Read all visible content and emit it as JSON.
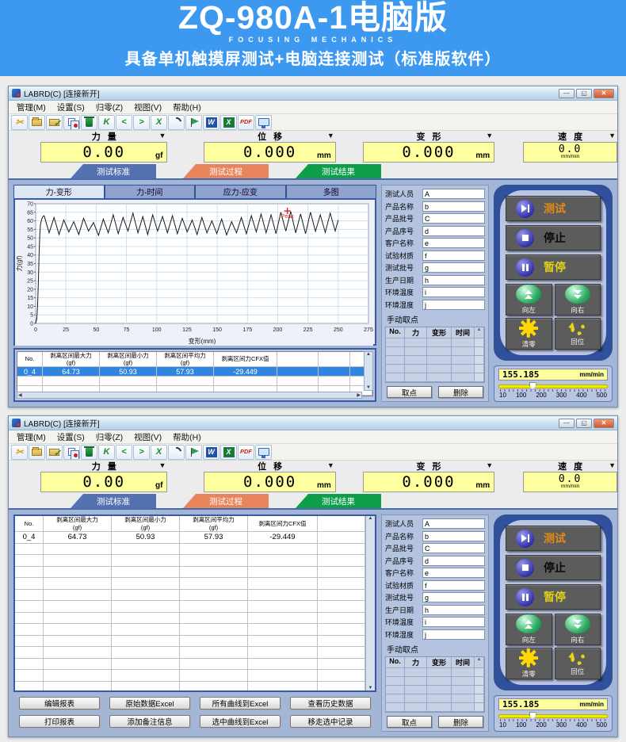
{
  "banner": {
    "title": "ZQ-980A-1电脑版",
    "subtitle": "FOCUSING MECHANICS",
    "tagline": "具备单机触摸屏测试+电脑连接测试（标准版软件）"
  },
  "shared": {
    "window_title": "LABRD(C)  [连接新开]",
    "window_buttons": {
      "minimize": "—",
      "maximize": "◱",
      "close": "✕"
    },
    "menus": [
      "管理(M)",
      "设置(S)",
      "归零(Z)",
      "视图(V)",
      "帮助(H)"
    ],
    "toolbar_icons": [
      "scissors",
      "folder-open",
      "save",
      "copy",
      "delete",
      "nav-first",
      "nav-prev",
      "nav-next",
      "nav-last",
      "curve",
      "flag",
      "export-word",
      "export-excel",
      "export-pdf",
      "device-monitor"
    ],
    "gauges": [
      {
        "label": "力量",
        "value": "0.00",
        "unit": "gf"
      },
      {
        "label": "位移",
        "value": "0.000",
        "unit": "mm"
      },
      {
        "label": "变形",
        "value": "0.000",
        "unit": "mm"
      },
      {
        "label": "速度",
        "value": "0.0",
        "unit": "mm/min"
      }
    ],
    "stage_tabs": [
      {
        "label": "测试标准",
        "color": "#5572b0"
      },
      {
        "label": "测试过程",
        "color": "#e8845c"
      },
      {
        "label": "测试结果",
        "color": "#0d9e4a"
      }
    ],
    "info_fields": [
      {
        "label": "测试人员",
        "value": "A"
      },
      {
        "label": "产品名称",
        "value": "b"
      },
      {
        "label": "产品批号",
        "value": "C"
      },
      {
        "label": "产品序号",
        "value": "d"
      },
      {
        "label": "客户名称",
        "value": "e"
      },
      {
        "label": "试验材质",
        "value": "f"
      },
      {
        "label": "测试批号",
        "value": "g"
      },
      {
        "label": "生产日期",
        "value": "h"
      },
      {
        "label": "环境温度",
        "value": "i"
      },
      {
        "label": "环境湿度",
        "value": "j"
      }
    ],
    "manual_points": {
      "title": "手动取点",
      "columns": [
        "No.",
        "力",
        "变形",
        "时间"
      ],
      "take": "取点",
      "remove": "删除"
    },
    "controls": {
      "test": "测试",
      "stop": "停止",
      "pause": "暂停",
      "left": "向左",
      "right": "向右",
      "zero": "清零",
      "home": "回位"
    },
    "speed": {
      "value": "155.185",
      "unit": "mm/min",
      "scale": [
        "10",
        "100",
        "200",
        "300",
        "400",
        "500"
      ]
    },
    "results_columns": [
      {
        "l1": "No.",
        "l2": ""
      },
      {
        "l1": "剥离区间最大力",
        "l2": "(gf)"
      },
      {
        "l1": "剥离区间最小力",
        "l2": "(gf)"
      },
      {
        "l1": "剥离区间平均力",
        "l2": "(gf)"
      },
      {
        "l1": "剥离区间力CFX值",
        "l2": ""
      }
    ],
    "results_rows": [
      [
        "0_4",
        "64.73",
        "50.93",
        "57.93",
        "-29.449"
      ]
    ]
  },
  "window1": {
    "chart_tabs": [
      "力-变形",
      "力-时间",
      "应力-应变",
      "多图"
    ],
    "selected_chart_tab": "力-变形"
  },
  "window2": {
    "report_buttons": [
      [
        "编辑报表",
        "原始数据Excel",
        "所有曲线到Excel",
        "查看历史数据"
      ],
      [
        "打印报表",
        "添加备注信息",
        "选中曲线到Excel",
        "移走选中记录"
      ]
    ]
  },
  "chart_data": {
    "type": "line",
    "title": "",
    "xlabel": "变形(mm)",
    "ylabel": "力(gf)",
    "xlim": [
      0,
      275
    ],
    "ylim": [
      0,
      70
    ],
    "xtick": 25,
    "ytick": 5,
    "grid": true,
    "line_color": "#1a1a1a",
    "annotations": [
      {
        "x": 208,
        "y": 65.8,
        "label": "Peak",
        "color": "#e02020"
      }
    ],
    "series": [
      {
        "name": "力-变形",
        "points": [
          [
            0,
            0
          ],
          [
            1,
            3
          ],
          [
            1.6,
            10
          ],
          [
            2.2,
            24
          ],
          [
            2.8,
            40
          ],
          [
            3.4,
            52
          ],
          [
            4,
            58
          ],
          [
            5,
            61
          ],
          [
            6,
            62.5
          ],
          [
            7,
            63
          ],
          [
            11.1,
            53
          ],
          [
            15.2,
            62
          ],
          [
            19.3,
            52
          ],
          [
            23.3,
            60.5
          ],
          [
            27.4,
            53.5
          ],
          [
            31.5,
            59.5
          ],
          [
            35.6,
            52
          ],
          [
            39.6,
            61.5
          ],
          [
            43.7,
            54
          ],
          [
            47.8,
            59
          ],
          [
            51.9,
            51.5
          ],
          [
            55.9,
            61
          ],
          [
            60,
            53
          ],
          [
            64.1,
            63.5
          ],
          [
            68.2,
            52.5
          ],
          [
            72.2,
            62
          ],
          [
            76.3,
            54
          ],
          [
            80.4,
            64.5
          ],
          [
            84.5,
            53
          ],
          [
            88.5,
            62.5
          ],
          [
            92.6,
            52
          ],
          [
            96.7,
            63.5
          ],
          [
            100.8,
            54
          ],
          [
            104.8,
            62.5
          ],
          [
            108.9,
            53
          ],
          [
            113,
            63
          ],
          [
            117.1,
            52.5
          ],
          [
            121.1,
            61.5
          ],
          [
            125.2,
            53.5
          ],
          [
            129.3,
            60.5
          ],
          [
            133.4,
            52
          ],
          [
            137.4,
            62
          ],
          [
            141.5,
            53
          ],
          [
            145.6,
            60
          ],
          [
            149.7,
            52.5
          ],
          [
            153.7,
            61
          ],
          [
            157.8,
            51.8
          ],
          [
            161.9,
            59.5
          ],
          [
            166,
            53
          ],
          [
            170,
            62
          ],
          [
            174.1,
            52.5
          ],
          [
            178.2,
            63
          ],
          [
            182.3,
            53.5
          ],
          [
            186.3,
            64
          ],
          [
            190.4,
            53
          ],
          [
            194.5,
            63.5
          ],
          [
            198.6,
            52.5
          ],
          [
            202.6,
            65
          ],
          [
            206.7,
            54
          ],
          [
            210.8,
            65.5
          ],
          [
            214.9,
            53
          ],
          [
            218.9,
            64
          ],
          [
            223,
            52.5
          ],
          [
            227.1,
            65
          ],
          [
            231.2,
            53.8
          ],
          [
            235.2,
            63.5
          ],
          [
            239.3,
            53.2
          ],
          [
            243.4,
            64.5
          ],
          [
            247.5,
            54
          ],
          [
            250,
            60.5
          ]
        ]
      }
    ]
  }
}
